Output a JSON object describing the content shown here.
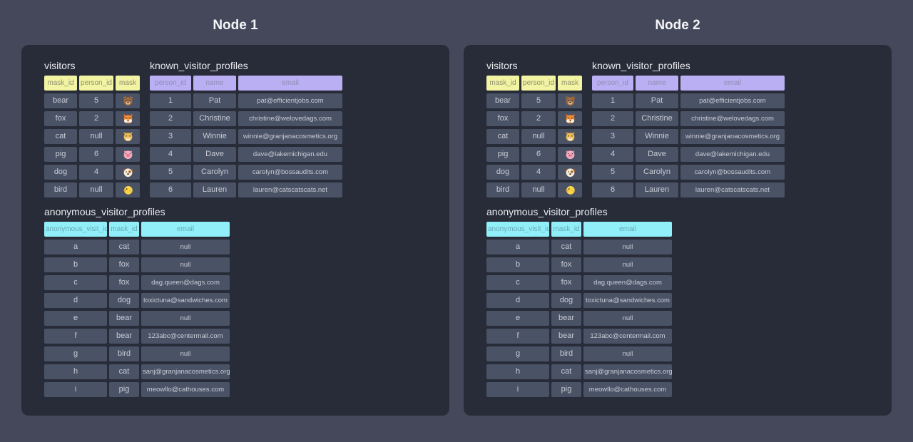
{
  "colors": {
    "page_bg": "#45485a",
    "panel_bg": "#282b38",
    "cell_bg": "#4a5366",
    "cell_text": "#c7cbd5",
    "yellow_header_bg": "#f2f3a3",
    "yellow_header_text": "#8f906e",
    "purple_header_bg": "#b9aff2",
    "purple_header_text": "#8f8db5",
    "cyan_header_bg": "#90eff8",
    "cyan_header_text": "#67a9b6",
    "table_title_text": "#e8eaee",
    "node_title_text": "#f4f5f7"
  },
  "mask_icons": {
    "bear": "🐻",
    "fox": "🦊",
    "cat": "🐱",
    "pig": "🐷",
    "dog": "🐶",
    "bird": "🐤"
  },
  "nodes": [
    {
      "title": "Node 1",
      "tables": {
        "visitors": {
          "title": "visitors",
          "header_color": "yellow",
          "columns": [
            "mask_id",
            "person_id",
            "mask"
          ],
          "rows": [
            [
              "bear",
              "5",
              "bear"
            ],
            [
              "fox",
              "2",
              "fox"
            ],
            [
              "cat",
              "null",
              "cat"
            ],
            [
              "pig",
              "6",
              "pig"
            ],
            [
              "dog",
              "4",
              "dog"
            ],
            [
              "bird",
              "null",
              "bird"
            ]
          ]
        },
        "known_visitor_profiles": {
          "title": "known_visitor_profiles",
          "header_color": "purple",
          "columns": [
            "person_id",
            "name",
            "email"
          ],
          "rows": [
            [
              "1",
              "Pat",
              "pat@efficientjobs.com"
            ],
            [
              "2",
              "Christine",
              "christine@welovedags.com"
            ],
            [
              "3",
              "Winnie",
              "winnie@granjanacosmetics.org"
            ],
            [
              "4",
              "Dave",
              "dave@lakemichigan.edu"
            ],
            [
              "5",
              "Carolyn",
              "carolyn@bossaudits.com"
            ],
            [
              "6",
              "Lauren",
              "lauren@catscatscats.net"
            ]
          ]
        },
        "anonymous_visitor_profiles": {
          "title": "anonymous_visitor_profiles",
          "header_color": "cyan",
          "columns": [
            "anonymous_visit_id",
            "mask_id",
            "email"
          ],
          "rows": [
            [
              "a",
              "cat",
              "null"
            ],
            [
              "b",
              "fox",
              "null"
            ],
            [
              "c",
              "fox",
              "dag.queen@dags.com"
            ],
            [
              "d",
              "dog",
              "toxictuna@sandwiches.com"
            ],
            [
              "e",
              "bear",
              "null"
            ],
            [
              "f",
              "bear",
              "123abc@centermail.com"
            ],
            [
              "g",
              "bird",
              "null"
            ],
            [
              "h",
              "cat",
              "sanj@granjanacosmetics.org"
            ],
            [
              "i",
              "pig",
              "meowllo@cathouses.com"
            ]
          ]
        }
      }
    },
    {
      "title": "Node 2",
      "tables": {
        "visitors": {
          "title": "visitors",
          "header_color": "yellow",
          "columns": [
            "mask_id",
            "person_id",
            "mask"
          ],
          "rows": [
            [
              "bear",
              "5",
              "bear"
            ],
            [
              "fox",
              "2",
              "fox"
            ],
            [
              "cat",
              "null",
              "cat"
            ],
            [
              "pig",
              "6",
              "pig"
            ],
            [
              "dog",
              "4",
              "dog"
            ],
            [
              "bird",
              "null",
              "bird"
            ]
          ]
        },
        "known_visitor_profiles": {
          "title": "known_visitor_profiles",
          "header_color": "purple",
          "columns": [
            "person_id",
            "name",
            "email"
          ],
          "rows": [
            [
              "1",
              "Pat",
              "pat@efficientjobs.com"
            ],
            [
              "2",
              "Christine",
              "christine@welovedags.com"
            ],
            [
              "3",
              "Winnie",
              "winnie@granjanacosmetics.org"
            ],
            [
              "4",
              "Dave",
              "dave@lakemichigan.edu"
            ],
            [
              "5",
              "Carolyn",
              "carolyn@bossaudits.com"
            ],
            [
              "6",
              "Lauren",
              "lauren@catscatscats.net"
            ]
          ]
        },
        "anonymous_visitor_profiles": {
          "title": "anonymous_visitor_profiles",
          "header_color": "cyan",
          "columns": [
            "anonymous_visit_id",
            "mask_id",
            "email"
          ],
          "rows": [
            [
              "a",
              "cat",
              "null"
            ],
            [
              "b",
              "fox",
              "null"
            ],
            [
              "c",
              "fox",
              "dag.queen@dags.com"
            ],
            [
              "d",
              "dog",
              "toxictuna@sandwiches.com"
            ],
            [
              "e",
              "bear",
              "null"
            ],
            [
              "f",
              "bear",
              "123abc@centermail.com"
            ],
            [
              "g",
              "bird",
              "null"
            ],
            [
              "h",
              "cat",
              "sanj@granjanacosmetics.org"
            ],
            [
              "i",
              "pig",
              "meowllo@cathouses.com"
            ]
          ]
        }
      }
    }
  ]
}
